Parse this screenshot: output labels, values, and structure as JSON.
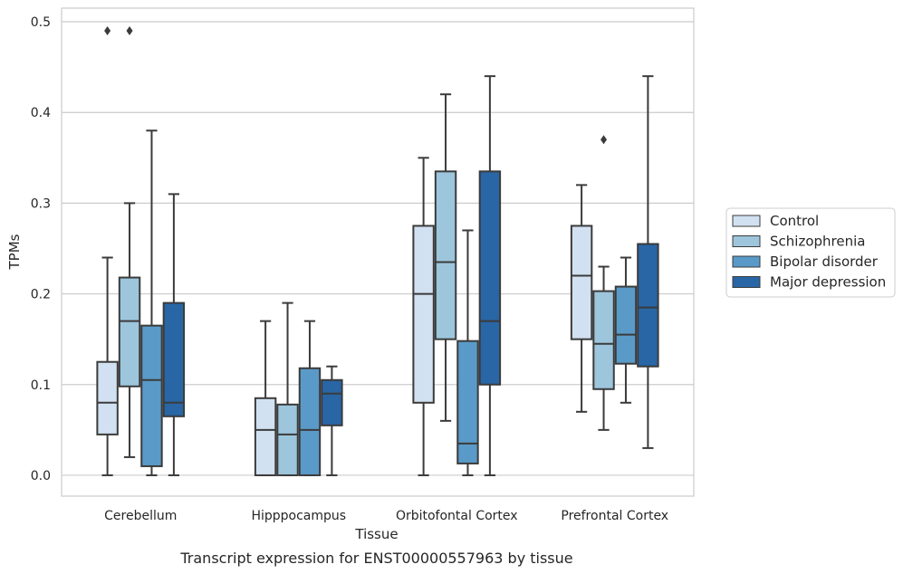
{
  "chart_data": {
    "type": "box",
    "title": "",
    "caption": "Transcript expression for ENST00000557963 by tissue",
    "xlabel": "Tissue",
    "ylabel": "TPMs",
    "ylim": [
      -0.023,
      0.515
    ],
    "yticks": [
      0.0,
      0.1,
      0.2,
      0.3,
      0.4,
      0.5
    ],
    "ytick_labels": [
      "0.0",
      "0.1",
      "0.2",
      "0.3",
      "0.4",
      "0.5"
    ],
    "grid": "horizontal",
    "legend_position": "right",
    "categories": [
      "Cerebellum",
      "Hipppocampus",
      "Orbitofontal Cortex",
      "Prefrontal Cortex"
    ],
    "series": [
      {
        "name": "Control",
        "color": "#d2e1f1",
        "boxes": [
          {
            "whisker_low": 0.0,
            "q1": 0.045,
            "median": 0.08,
            "q3": 0.125,
            "whisker_high": 0.24,
            "outliers": [
              0.49
            ]
          },
          {
            "whisker_low": 0.0,
            "q1": 0.0,
            "median": 0.05,
            "q3": 0.085,
            "whisker_high": 0.17,
            "outliers": []
          },
          {
            "whisker_low": 0.0,
            "q1": 0.08,
            "median": 0.2,
            "q3": 0.275,
            "whisker_high": 0.35,
            "outliers": []
          },
          {
            "whisker_low": 0.07,
            "q1": 0.15,
            "median": 0.22,
            "q3": 0.275,
            "whisker_high": 0.32,
            "outliers": []
          }
        ]
      },
      {
        "name": "Schizophrenia",
        "color": "#9dc6dd",
        "boxes": [
          {
            "whisker_low": 0.02,
            "q1": 0.098,
            "median": 0.17,
            "q3": 0.218,
            "whisker_high": 0.3,
            "outliers": [
              0.49
            ]
          },
          {
            "whisker_low": 0.0,
            "q1": 0.0,
            "median": 0.045,
            "q3": 0.078,
            "whisker_high": 0.19,
            "outliers": []
          },
          {
            "whisker_low": 0.06,
            "q1": 0.15,
            "median": 0.235,
            "q3": 0.335,
            "whisker_high": 0.42,
            "outliers": []
          },
          {
            "whisker_low": 0.05,
            "q1": 0.095,
            "median": 0.145,
            "q3": 0.203,
            "whisker_high": 0.23,
            "outliers": [
              0.37
            ]
          }
        ]
      },
      {
        "name": "Bipolar disorder",
        "color": "#5a9ac8",
        "boxes": [
          {
            "whisker_low": 0.0,
            "q1": 0.01,
            "median": 0.105,
            "q3": 0.165,
            "whisker_high": 0.38,
            "outliers": []
          },
          {
            "whisker_low": 0.0,
            "q1": 0.0,
            "median": 0.05,
            "q3": 0.118,
            "whisker_high": 0.17,
            "outliers": []
          },
          {
            "whisker_low": 0.0,
            "q1": 0.013,
            "median": 0.035,
            "q3": 0.148,
            "whisker_high": 0.27,
            "outliers": []
          },
          {
            "whisker_low": 0.08,
            "q1": 0.123,
            "median": 0.155,
            "q3": 0.208,
            "whisker_high": 0.24,
            "outliers": []
          }
        ]
      },
      {
        "name": "Major depression",
        "color": "#2866a5",
        "boxes": [
          {
            "whisker_low": 0.0,
            "q1": 0.065,
            "median": 0.08,
            "q3": 0.19,
            "whisker_high": 0.31,
            "outliers": []
          },
          {
            "whisker_low": 0.0,
            "q1": 0.055,
            "median": 0.09,
            "q3": 0.105,
            "whisker_high": 0.12,
            "outliers": []
          },
          {
            "whisker_low": 0.0,
            "q1": 0.1,
            "median": 0.17,
            "q3": 0.335,
            "whisker_high": 0.44,
            "outliers": []
          },
          {
            "whisker_low": 0.03,
            "q1": 0.12,
            "median": 0.185,
            "q3": 0.255,
            "whisker_high": 0.44,
            "outliers": []
          }
        ]
      }
    ]
  }
}
